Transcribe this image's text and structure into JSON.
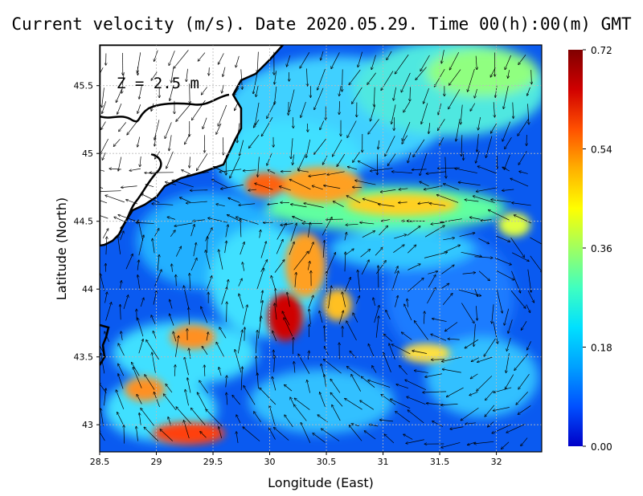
{
  "title": "Current velocity (m/s). Date 2020.05.29. Time 00(h):00(m) GMT",
  "depth_label": "Z = 2.5 m",
  "x_axis": {
    "label": "Longitude (East)",
    "range": [
      28.5,
      32.4
    ],
    "ticks": [
      "28.5",
      "29",
      "29.5",
      "30",
      "30.5",
      "31",
      "31.5",
      "32"
    ],
    "tick_values": [
      28.5,
      29,
      29.5,
      30,
      30.5,
      31,
      31.5,
      32
    ]
  },
  "y_axis": {
    "label": "Latitude (North)",
    "range": [
      42.8,
      45.8
    ],
    "ticks": [
      "43",
      "43.5",
      "44",
      "44.5",
      "45",
      "45.5"
    ],
    "tick_values": [
      43,
      43.5,
      44,
      44.5,
      45,
      45.5
    ]
  },
  "colorbar": {
    "ticks": [
      "0.72",
      "0.54",
      "0.36",
      "0.18",
      "0.00"
    ],
    "tick_values": [
      0.72,
      0.54,
      0.36,
      0.18,
      0.0
    ],
    "min": 0.0,
    "max": 0.72,
    "colors": [
      "#0000c8",
      "#0050ff",
      "#00a0ff",
      "#00e0ff",
      "#40ffc0",
      "#a0ff60",
      "#ffff00",
      "#ffb000",
      "#ff5000",
      "#d00000",
      "#800000"
    ]
  },
  "grid": "dotted",
  "land_color": "#ffffff",
  "coast_color": "#000000"
}
